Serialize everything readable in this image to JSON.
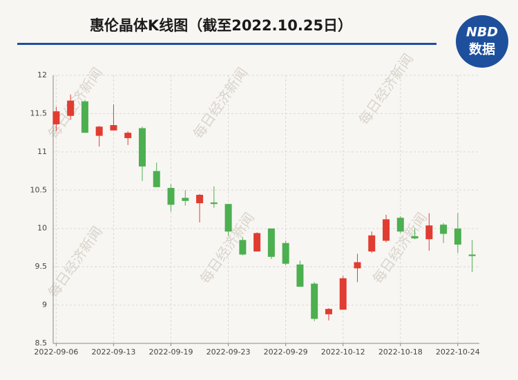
{
  "chart_data": {
    "type": "candlestick",
    "title": "惠伦晶体K线图（截至2022.10.25日）",
    "logo": {
      "top": "NBD",
      "bottom": "数据"
    },
    "watermark": "每日经济新闻",
    "categories": [
      "2022-09-06",
      null,
      null,
      null,
      "2022-09-13",
      null,
      null,
      null,
      "2022-09-19",
      null,
      null,
      null,
      "2022-09-23",
      null,
      null,
      null,
      "2022-09-29",
      null,
      null,
      null,
      "2022-10-12",
      null,
      null,
      null,
      "2022-10-18",
      null,
      null,
      null,
      "2022-10-24",
      null
    ],
    "open": [
      11.36,
      11.47,
      11.66,
      11.21,
      11.28,
      11.18,
      11.31,
      10.75,
      10.53,
      10.4,
      10.33,
      10.34,
      10.32,
      9.85,
      9.7,
      10.0,
      9.81,
      9.53,
      9.28,
      8.88,
      8.94,
      9.48,
      9.7,
      9.84,
      10.14,
      9.9,
      9.86,
      10.05,
      10.0,
      9.66
    ],
    "high": [
      11.59,
      11.75,
      11.68,
      11.34,
      11.62,
      11.27,
      11.33,
      10.86,
      10.58,
      10.5,
      10.45,
      10.55,
      10.32,
      9.89,
      9.95,
      10.0,
      9.84,
      9.58,
      9.3,
      8.96,
      9.38,
      9.67,
      9.96,
      10.18,
      10.16,
      10.0,
      10.2,
      10.07,
      10.2,
      9.85
    ],
    "low": [
      11.27,
      11.42,
      11.25,
      11.07,
      11.28,
      11.09,
      10.62,
      10.54,
      10.22,
      10.3,
      10.08,
      10.27,
      9.9,
      9.65,
      9.7,
      9.6,
      9.52,
      9.24,
      8.79,
      8.8,
      8.94,
      9.3,
      9.68,
      9.82,
      9.94,
      9.86,
      9.71,
      9.81,
      9.68,
      9.43
    ],
    "close": [
      11.53,
      11.67,
      11.25,
      11.33,
      11.35,
      11.25,
      10.81,
      10.54,
      10.31,
      10.36,
      10.44,
      10.32,
      9.96,
      9.66,
      9.94,
      9.63,
      9.54,
      9.24,
      8.82,
      8.95,
      9.35,
      9.56,
      9.91,
      10.12,
      9.96,
      9.87,
      10.04,
      9.93,
      9.79,
      9.64
    ],
    "up_color": "#e03c31",
    "down_color": "#4caf50",
    "ylim": [
      8.5,
      12
    ],
    "yticks": [
      8.5,
      9,
      9.5,
      10,
      10.5,
      11,
      11.5,
      12
    ],
    "grid": true
  }
}
